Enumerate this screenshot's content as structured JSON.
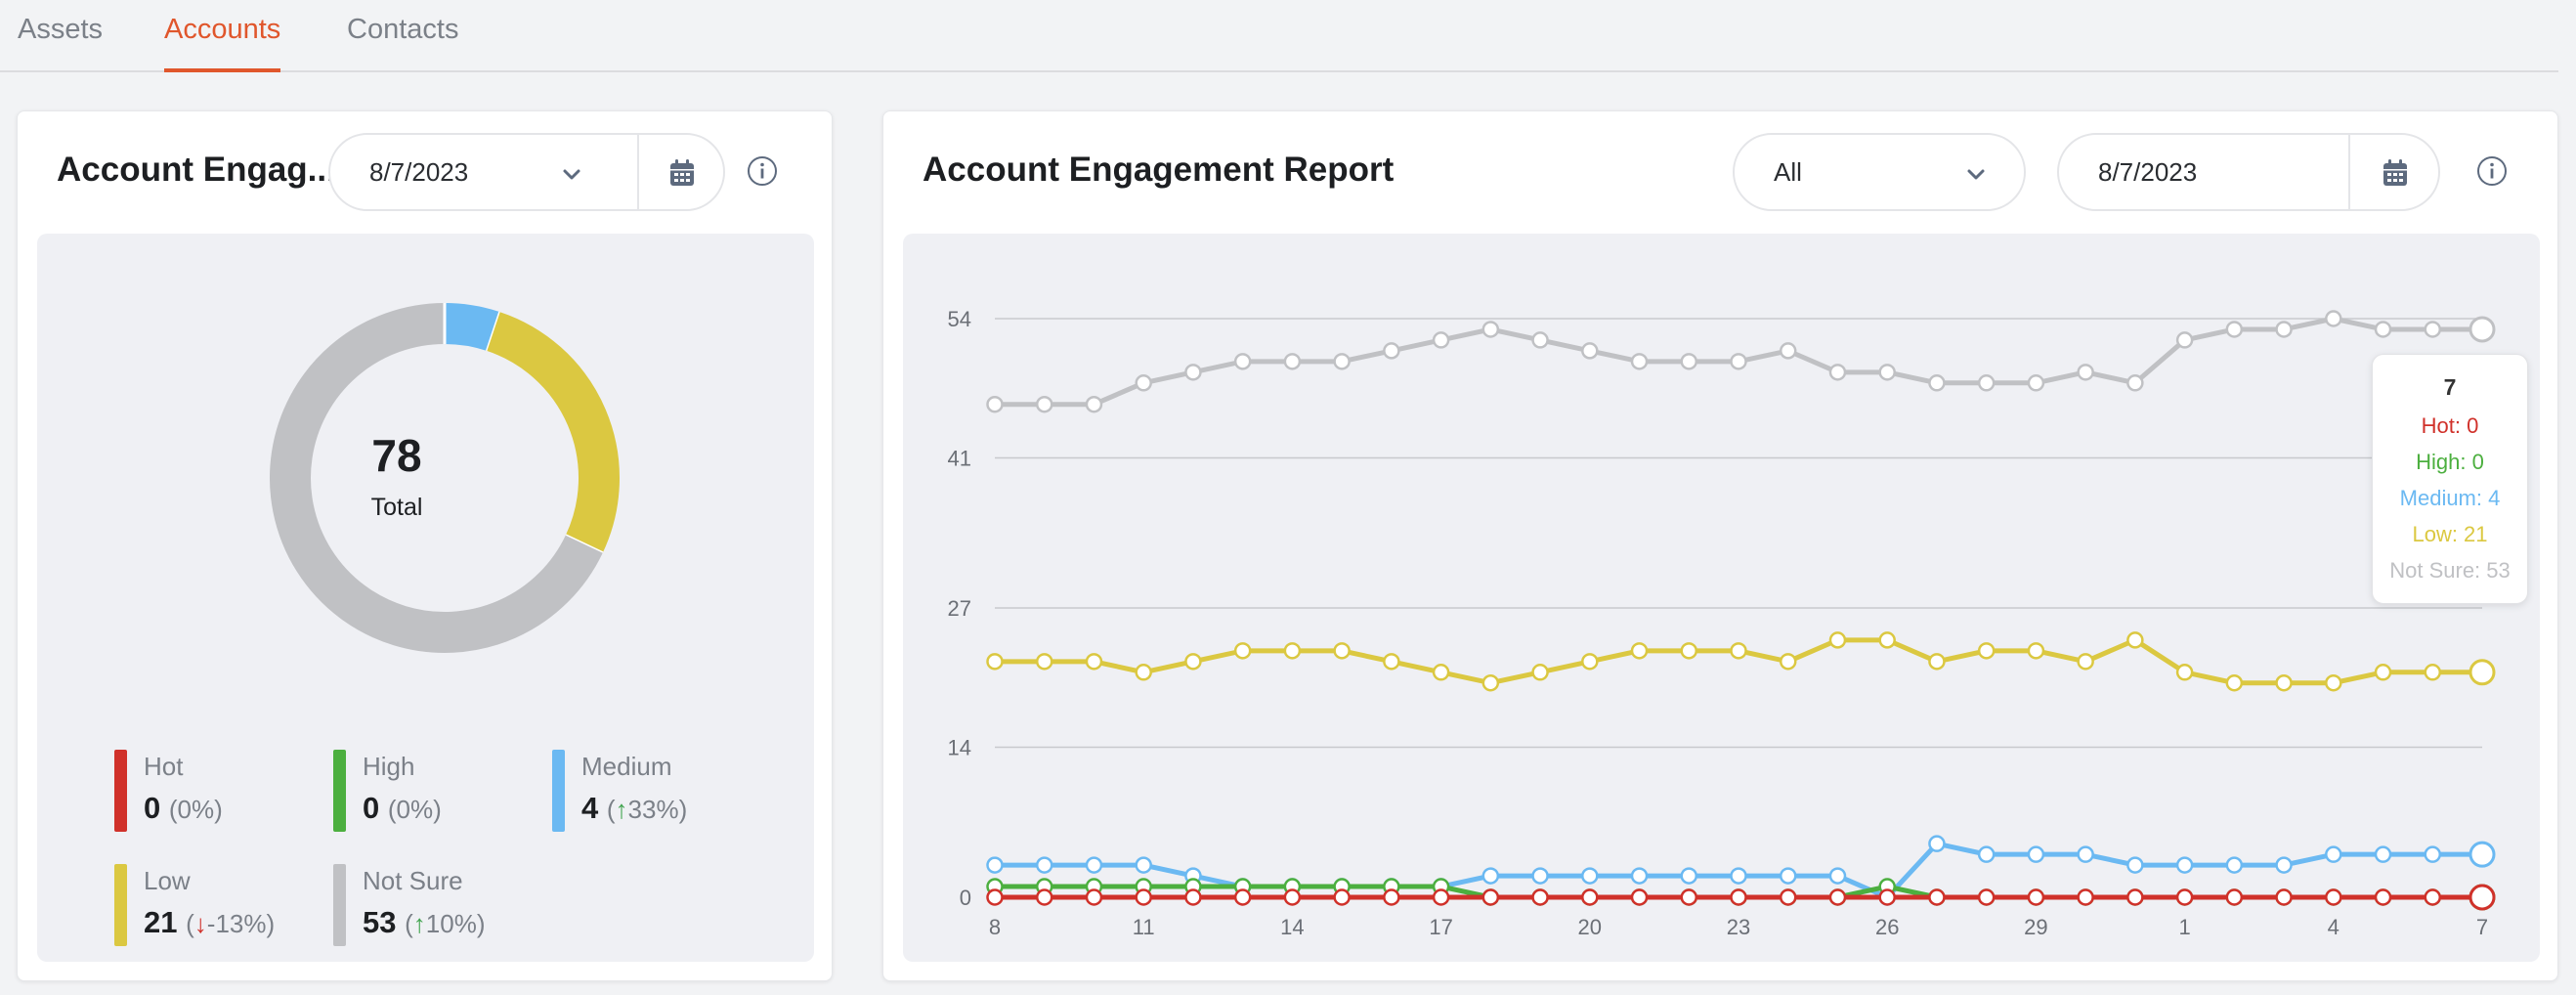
{
  "tabs": [
    {
      "label": "Assets",
      "active": false
    },
    {
      "label": "Accounts",
      "active": true
    },
    {
      "label": "Contacts",
      "active": false
    }
  ],
  "colors": {
    "hot": "#d0312a",
    "high": "#4caf3f",
    "medium": "#6bb9f2",
    "low": "#dbc841",
    "not_sure": "#c0c1c4",
    "accent": "#e0562c"
  },
  "left_card": {
    "title": "Account Engag...",
    "date": "8/7/2023",
    "icons": [
      "chevron-down-icon",
      "calendar-icon",
      "info-icon"
    ],
    "donut": {
      "total_value": "78",
      "total_label": "Total"
    },
    "legend": [
      {
        "key": "hot",
        "label": "Hot",
        "value": "0",
        "pct_prefix": "(",
        "arrow": "",
        "pct": "0%)"
      },
      {
        "key": "high",
        "label": "High",
        "value": "0",
        "pct_prefix": "(",
        "arrow": "",
        "pct": "0%)"
      },
      {
        "key": "medium",
        "label": "Medium",
        "value": "4",
        "pct_prefix": "(",
        "arrow": "up",
        "pct": "33%)"
      },
      {
        "key": "low",
        "label": "Low",
        "value": "21",
        "pct_prefix": "(",
        "arrow": "down",
        "pct": "-13%)"
      },
      {
        "key": "not_sure",
        "label": "Not Sure",
        "value": "53",
        "pct_prefix": "(",
        "arrow": "up",
        "pct": "10%)"
      }
    ]
  },
  "right_card": {
    "title": "Account Engagement Report",
    "filter": "All",
    "date": "8/7/2023",
    "icons": [
      "chevron-down-icon",
      "calendar-icon",
      "info-icon"
    ]
  },
  "chart_data": [
    {
      "type": "pie",
      "labels": [
        "Hot",
        "High",
        "Medium",
        "Low",
        "Not Sure"
      ],
      "values": [
        0,
        0,
        4,
        21,
        53
      ],
      "center_text": "78",
      "center_subtext": "Total"
    },
    {
      "type": "line",
      "x": [
        "8",
        "9",
        "10",
        "11",
        "12",
        "13",
        "14",
        "15",
        "16",
        "17",
        "18",
        "19",
        "20",
        "21",
        "22",
        "23",
        "24",
        "25",
        "26",
        "27",
        "28",
        "29",
        "30",
        "31",
        "1",
        "2",
        "3",
        "4",
        "5",
        "6",
        "7"
      ],
      "tick_labels": [
        "8",
        "11",
        "14",
        "17",
        "20",
        "23",
        "26",
        "29",
        "1",
        "4",
        "7"
      ],
      "y_ticks": [
        0,
        14,
        27,
        41,
        54
      ],
      "ylim": [
        0,
        54
      ],
      "grid": true,
      "series": [
        {
          "name": "Not Sure",
          "key": "not_sure",
          "values": [
            46,
            46,
            46,
            48,
            49,
            50,
            50,
            50,
            51,
            52,
            53,
            52,
            51,
            50,
            50,
            50,
            51,
            49,
            49,
            48,
            48,
            48,
            49,
            48,
            52,
            53,
            53,
            54,
            53,
            53,
            53
          ]
        },
        {
          "name": "Low",
          "key": "low",
          "values": [
            22,
            22,
            22,
            21,
            22,
            23,
            23,
            23,
            22,
            21,
            20,
            21,
            22,
            23,
            23,
            23,
            22,
            24,
            24,
            22,
            23,
            23,
            22,
            24,
            21,
            20,
            20,
            20,
            21,
            21,
            21
          ]
        },
        {
          "name": "Medium",
          "key": "medium",
          "values": [
            3,
            3,
            3,
            3,
            2,
            1,
            1,
            1,
            1,
            1,
            2,
            2,
            2,
            2,
            2,
            2,
            2,
            2,
            0,
            5,
            4,
            4,
            4,
            3,
            3,
            3,
            3,
            4,
            4,
            4,
            4
          ]
        },
        {
          "name": "High",
          "key": "high",
          "values": [
            1,
            1,
            1,
            1,
            1,
            1,
            1,
            1,
            1,
            1,
            0,
            0,
            0,
            0,
            0,
            0,
            0,
            0,
            1,
            0,
            0,
            0,
            0,
            0,
            0,
            0,
            0,
            0,
            0,
            0,
            0
          ]
        },
        {
          "name": "Hot",
          "key": "hot",
          "values": [
            0,
            0,
            0,
            0,
            0,
            0,
            0,
            0,
            0,
            0,
            0,
            0,
            0,
            0,
            0,
            0,
            0,
            0,
            0,
            0,
            0,
            0,
            0,
            0,
            0,
            0,
            0,
            0,
            0,
            0,
            0
          ]
        }
      ],
      "tooltip": {
        "title": "7",
        "lines": [
          {
            "key": "hot",
            "text": "Hot: 0"
          },
          {
            "key": "high",
            "text": "High: 0"
          },
          {
            "key": "medium",
            "text": "Medium: 4"
          },
          {
            "key": "low",
            "text": "Low: 21"
          },
          {
            "key": "not_sure",
            "text": "Not Sure: 53"
          }
        ]
      }
    }
  ]
}
